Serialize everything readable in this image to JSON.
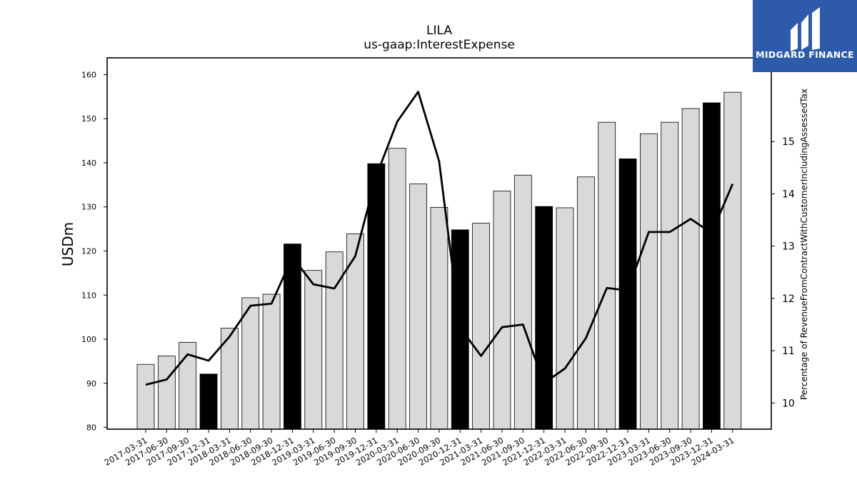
{
  "chart_data": {
    "type": "bar",
    "title": "LILA",
    "subtitle": "us-gaap:InterestExpense",
    "ylabel": "USDm",
    "y2label": "Percentage of RevenueFromContractWithCustomerIncludingAssessedTax",
    "ylim": [
      79.6,
      163.8
    ],
    "y2lim": [
      9.5,
      16.6
    ],
    "yticks": [
      80,
      90,
      100,
      110,
      120,
      130,
      140,
      150,
      160
    ],
    "y2ticks": [
      10,
      11,
      12,
      13,
      14,
      15
    ],
    "grid": false,
    "categories": [
      "2017-03-31",
      "2017-06-30",
      "2017-09-30",
      "2017-12-31",
      "2018-03-31",
      "2018-06-30",
      "2018-09-30",
      "2018-12-31",
      "2019-03-31",
      "2019-06-30",
      "2019-09-30",
      "2019-12-31",
      "2020-03-31",
      "2020-06-30",
      "2020-09-30",
      "2020-12-31",
      "2021-03-31",
      "2021-06-30",
      "2021-09-30",
      "2021-12-31",
      "2022-03-31",
      "2022-06-30",
      "2022-09-30",
      "2022-12-31",
      "2023-03-31",
      "2023-06-30",
      "2023-09-30",
      "2023-12-31",
      "2024-03-31"
    ],
    "series": [
      {
        "type": "bar",
        "axis": "left",
        "values": [
          94.3,
          96.2,
          99.3,
          92.1,
          102.5,
          109.4,
          110.2,
          121.6,
          115.6,
          119.8,
          123.9,
          139.8,
          143.3,
          135.2,
          129.9,
          124.8,
          126.3,
          133.6,
          137.2,
          130.1,
          129.8,
          136.8,
          149.2,
          140.9,
          146.6,
          149.2,
          152.3,
          153.6,
          156.0
        ],
        "colors": [
          "#d9d9d9",
          "#d9d9d9",
          "#d9d9d9",
          "#000000",
          "#d9d9d9",
          "#d9d9d9",
          "#d9d9d9",
          "#000000",
          "#d9d9d9",
          "#d9d9d9",
          "#d9d9d9",
          "#000000",
          "#d9d9d9",
          "#d9d9d9",
          "#d9d9d9",
          "#000000",
          "#d9d9d9",
          "#d9d9d9",
          "#d9d9d9",
          "#000000",
          "#d9d9d9",
          "#d9d9d9",
          "#d9d9d9",
          "#000000",
          "#d9d9d9",
          "#d9d9d9",
          "#d9d9d9",
          "#000000",
          "#d9d9d9"
        ]
      },
      {
        "type": "line",
        "axis": "right",
        "color": "#000000",
        "values": [
          10.35,
          10.45,
          10.93,
          10.81,
          11.27,
          11.86,
          11.9,
          12.79,
          12.27,
          12.19,
          12.81,
          14.34,
          15.38,
          15.95,
          14.62,
          11.44,
          10.9,
          11.45,
          11.5,
          10.38,
          10.66,
          11.24,
          12.2,
          12.15,
          13.27,
          13.27,
          13.52,
          13.25,
          14.19
        ]
      }
    ]
  },
  "logo": {
    "text": "MIDGARD FINANCE",
    "bg_color": "#2d5aa9"
  }
}
